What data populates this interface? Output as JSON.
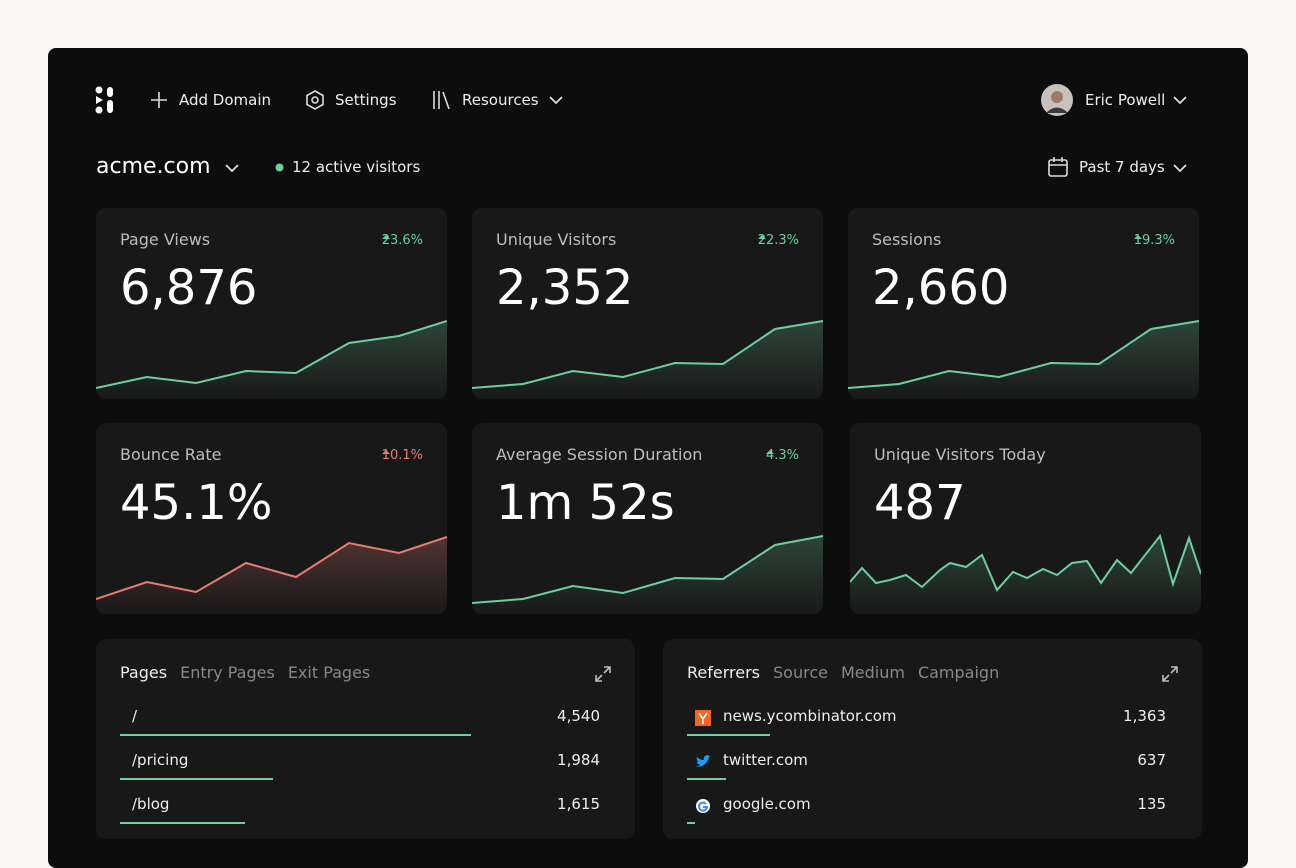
{
  "header": {
    "nav": [
      "Add Domain",
      "Settings",
      "Resources"
    ],
    "user": "Eric Powell"
  },
  "site": {
    "domain": "acme.com",
    "active": "12 active visitors",
    "range": "Past 7 days"
  },
  "metrics": [
    {
      "label": "Page Views",
      "value": "6,876",
      "change": "23.6%",
      "trend": "good"
    },
    {
      "label": "Unique Visitors",
      "value": "2,352",
      "change": "22.3%",
      "trend": "good"
    },
    {
      "label": "Sessions",
      "value": "2,660",
      "change": "19.3%",
      "trend": "good"
    },
    {
      "label": "Bounce Rate",
      "value": "45.1%",
      "change": "10.1%",
      "trend": "bad"
    },
    {
      "label": "Average Session Duration",
      "value": "1m 52s",
      "change": "4.3%",
      "trend": "good"
    },
    {
      "label": "Unique Visitors Today",
      "value": "487"
    }
  ],
  "pages": {
    "tabs": [
      "Pages",
      "Entry Pages",
      "Exit Pages"
    ],
    "rows": [
      {
        "name": "/",
        "count": 4540,
        "count_label": "4,540"
      },
      {
        "name": "/pricing",
        "count": 1984,
        "count_label": "1,984"
      },
      {
        "name": "/blog",
        "count": 1615,
        "count_label": "1,615"
      }
    ]
  },
  "referrers": {
    "tabs": [
      "Referrers",
      "Source",
      "Medium",
      "Campaign"
    ],
    "rows": [
      {
        "name": "news.ycombinator.com",
        "count": 1363,
        "count_label": "1,363"
      },
      {
        "name": "twitter.com",
        "count": 637,
        "count_label": "637"
      },
      {
        "name": "google.com",
        "count": 135,
        "count_label": "135"
      }
    ]
  }
}
